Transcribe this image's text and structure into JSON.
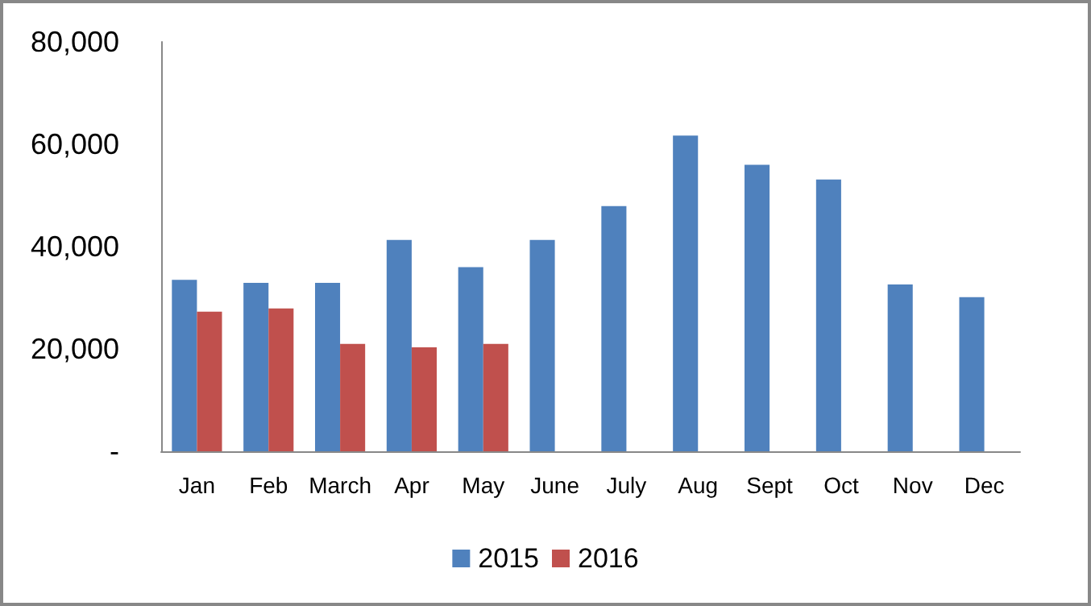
{
  "chart_data": {
    "type": "bar",
    "categories": [
      "Jan",
      "Feb",
      "March",
      "Apr",
      "May",
      "June",
      "July",
      "Aug",
      "Sept",
      "Oct",
      "Nov",
      "Dec"
    ],
    "series": [
      {
        "name": "2015",
        "color": "#4f81bd",
        "values": [
          33500,
          32900,
          32900,
          41300,
          36000,
          41300,
          47900,
          61700,
          56000,
          53100,
          32600,
          30100
        ]
      },
      {
        "name": "2016",
        "color": "#c0504d",
        "values": [
          27300,
          27900,
          21000,
          20300,
          21000,
          null,
          null,
          null,
          null,
          null,
          null,
          null
        ]
      }
    ],
    "ylim": [
      0,
      80000
    ],
    "yticks": [
      {
        "value": 0,
        "label": "-"
      },
      {
        "value": 20000,
        "label": "20,000"
      },
      {
        "value": 40000,
        "label": "40,000"
      },
      {
        "value": 60000,
        "label": "60,000"
      },
      {
        "value": 80000,
        "label": "80,000"
      }
    ],
    "grid": false,
    "legend": "bottom"
  }
}
